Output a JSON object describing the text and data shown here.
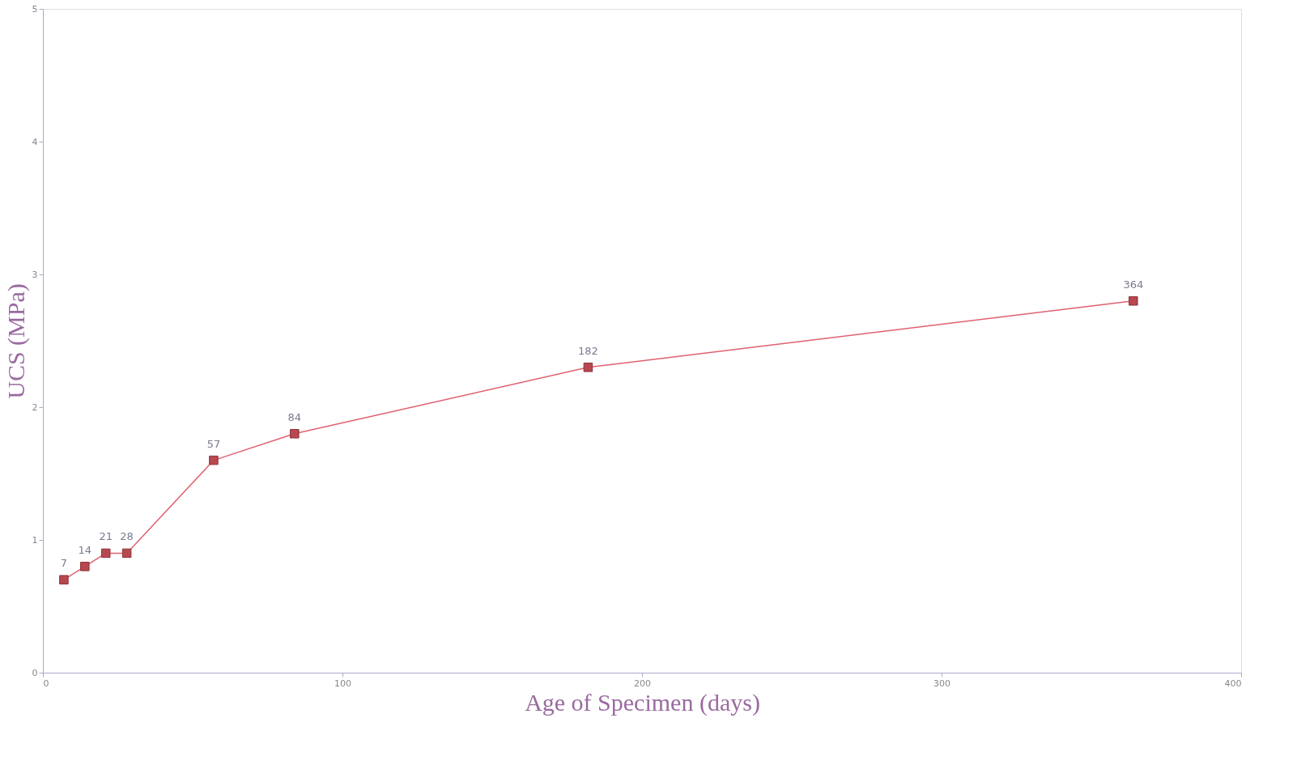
{
  "chart_data": {
    "type": "line",
    "xlabel": "Age of Specimen (days)",
    "ylabel": "UCS (MPa)",
    "x": [
      7,
      14,
      21,
      28,
      57,
      84,
      182,
      364
    ],
    "series": [
      {
        "color": "#e06070",
        "values": [
          0.7,
          0.8,
          0.9,
          0.9,
          1.6,
          1.8,
          2.3,
          2.8
        ]
      }
    ],
    "marker": "square",
    "line_style": "solid",
    "grid": false,
    "xlim": [
      0,
      400
    ],
    "xticks": [
      0,
      100,
      200,
      300,
      400
    ],
    "ylim": [
      0,
      5
    ],
    "yticks": [
      0,
      1,
      2,
      3,
      4,
      5
    ],
    "annotations": [
      {
        "text": "7",
        "x": 7,
        "y": 0.7
      },
      {
        "text": "14",
        "x": 14,
        "y": 0.8
      },
      {
        "text": "21",
        "x": 21,
        "y": 0.9
      },
      {
        "text": "28",
        "x": 28,
        "y": 0.9
      },
      {
        "text": "57",
        "x": 57,
        "y": 1.6
      },
      {
        "text": "84",
        "x": 84,
        "y": 1.8
      },
      {
        "text": "182",
        "x": 182,
        "y": 2.3
      },
      {
        "text": "364",
        "x": 364,
        "y": 2.8
      }
    ]
  }
}
